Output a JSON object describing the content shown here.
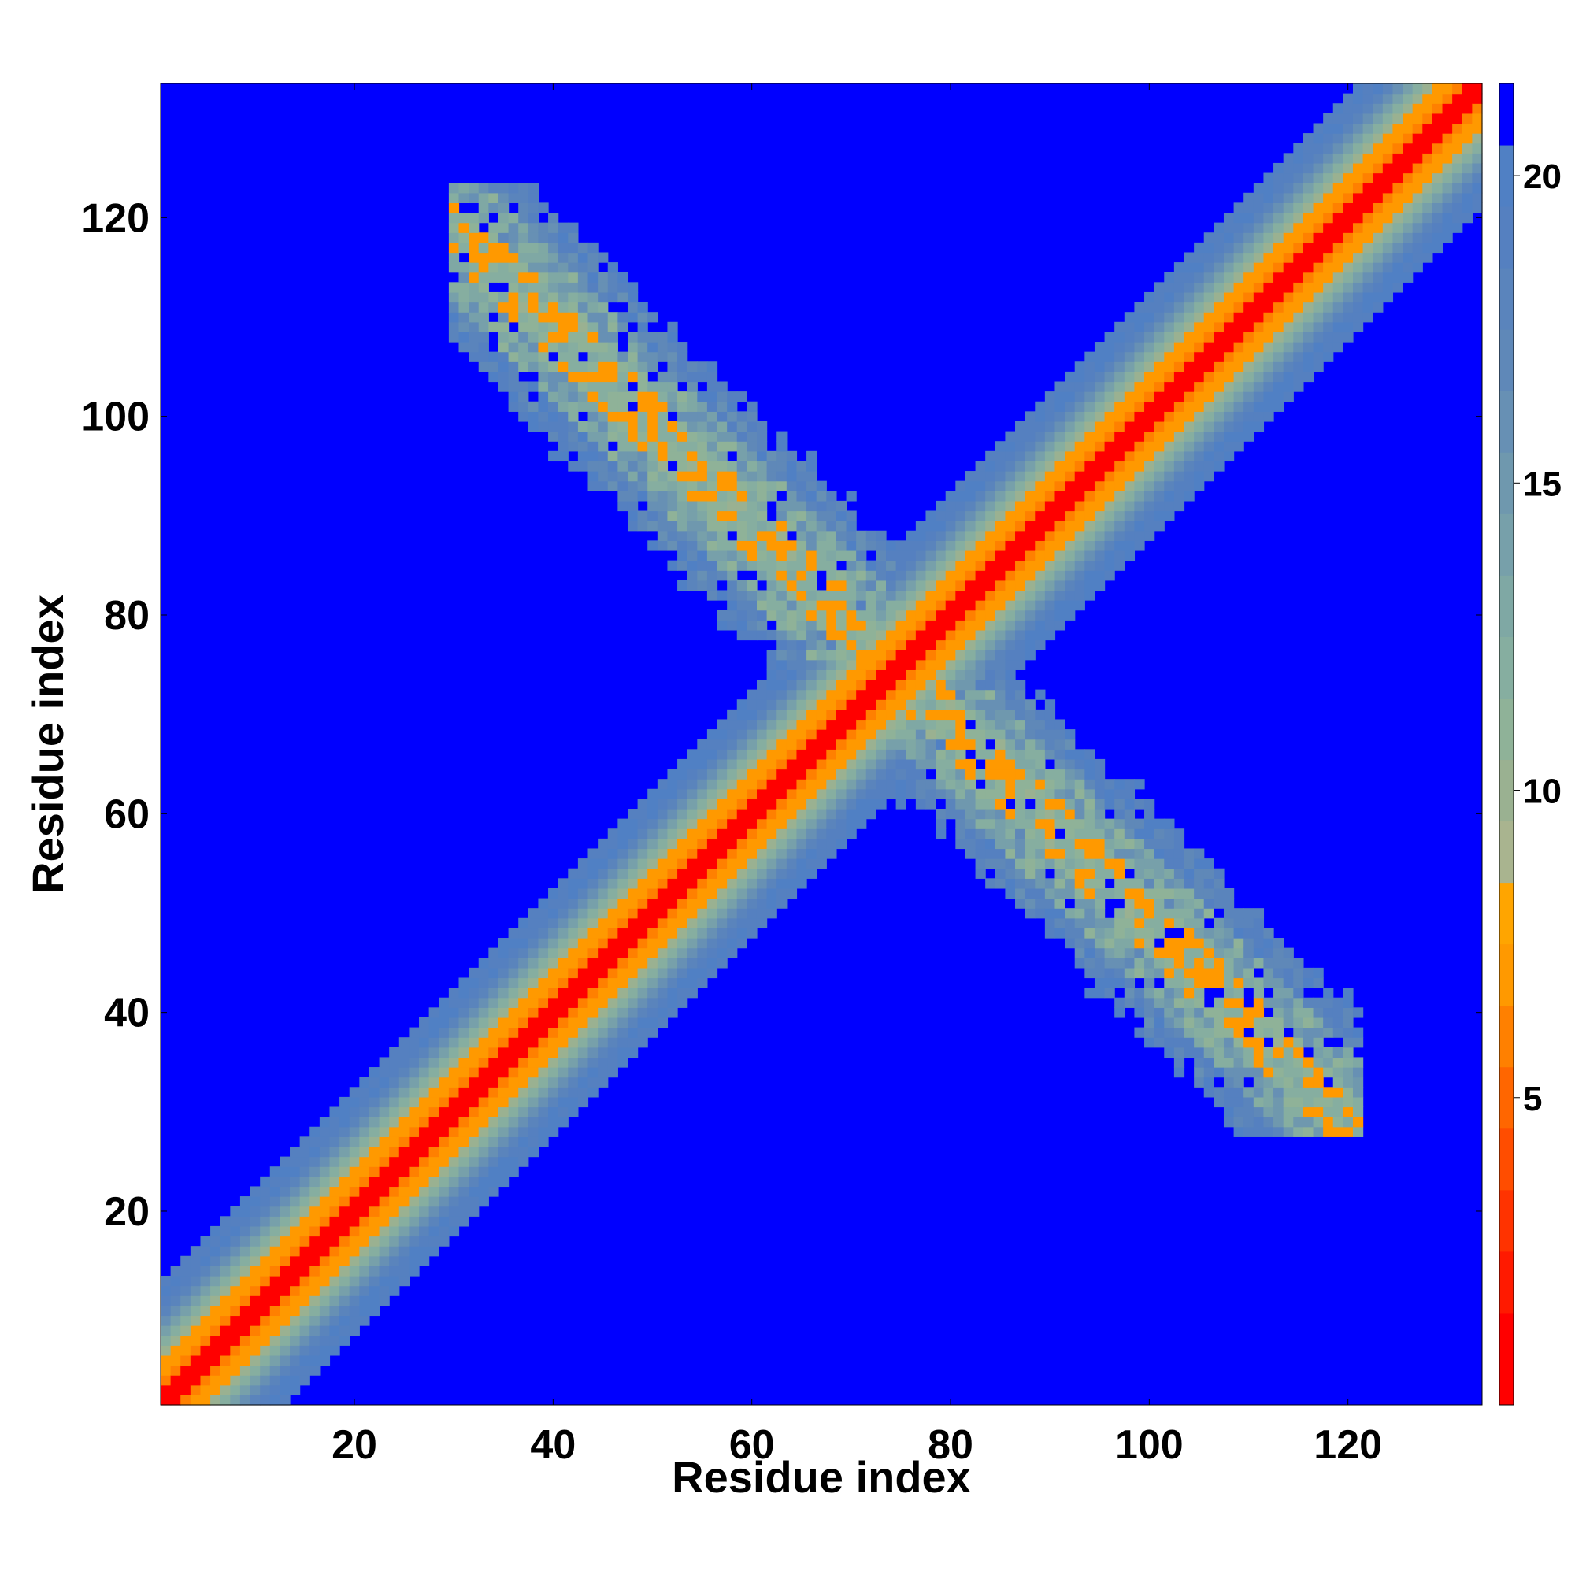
{
  "chart_data": {
    "type": "heatmap",
    "title": "",
    "xlabel": "Residue index",
    "ylabel": "Residue index",
    "xlim": [
      1,
      133
    ],
    "ylim": [
      1,
      133
    ],
    "x_ticks": [
      20,
      40,
      60,
      80,
      100,
      120
    ],
    "y_ticks": [
      20,
      40,
      60,
      80,
      100,
      120
    ],
    "x_tick_labels": [
      "20",
      "40",
      "60",
      "80",
      "100",
      "120"
    ],
    "y_tick_labels": [
      "20",
      "40",
      "60",
      "80",
      "100",
      "120"
    ],
    "grid": false,
    "value_range": [
      0,
      21.5
    ],
    "background_value": 21.5,
    "matrix_size": 133,
    "colorbar": {
      "position": "right",
      "ticks": [
        5,
        10,
        15,
        20
      ],
      "tick_labels": [
        "5",
        "10",
        "15",
        "20"
      ],
      "bins": [
        {
          "upper": 1.5,
          "color": "#ff0000"
        },
        {
          "upper": 2.5,
          "color": "#ff1a00"
        },
        {
          "upper": 3.5,
          "color": "#ff3300"
        },
        {
          "upper": 4.5,
          "color": "#ff4d00"
        },
        {
          "upper": 5.5,
          "color": "#ff6600"
        },
        {
          "upper": 6.5,
          "color": "#ff8000"
        },
        {
          "upper": 7.5,
          "color": "#ff9900"
        },
        {
          "upper": 8.5,
          "color": "#ffa500"
        },
        {
          "upper": 9.5,
          "color": "#a9b48f"
        },
        {
          "upper": 10.5,
          "color": "#9ab191"
        },
        {
          "upper": 11.5,
          "color": "#8fb298"
        },
        {
          "upper": 12.5,
          "color": "#86aea0"
        },
        {
          "upper": 13.5,
          "color": "#7fa8a4"
        },
        {
          "upper": 14.5,
          "color": "#77a0aa"
        },
        {
          "upper": 15.5,
          "color": "#6f98ae"
        },
        {
          "upper": 16.5,
          "color": "#6790b4"
        },
        {
          "upper": 17.5,
          "color": "#5f88b8"
        },
        {
          "upper": 18.5,
          "color": "#5a84bc"
        },
        {
          "upper": 19.5,
          "color": "#5580c0"
        },
        {
          "upper": 20.5,
          "color": "#5080c4"
        },
        {
          "upper": 21.5,
          "color": "#0000ff"
        }
      ]
    },
    "features": [
      {
        "kind": "diagonal",
        "description": "main diagonal band i≈j",
        "center_value": 0.5,
        "width_residues": 8
      },
      {
        "kind": "antidiagonal",
        "description": "anti-parallel contact band i+j≈149",
        "from": [
          30,
          119
        ],
        "to": [
          118,
          31
        ],
        "center_value": 8.5,
        "width_residues": 7
      }
    ]
  }
}
